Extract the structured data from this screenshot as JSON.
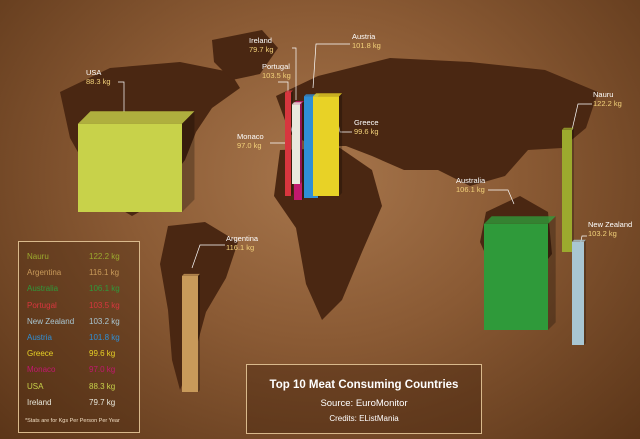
{
  "chart_data": {
    "type": "bar",
    "title": "Top 10 Meat Consuming Countries",
    "source": "Source: EuroMonitor",
    "credits": "Credits: EListMania",
    "note": "*Stats are for Kgs Per Person Per Year",
    "unit": "kg",
    "categories": [
      "Nauru",
      "Argentina",
      "Australia",
      "Portugal",
      "New Zealand",
      "Austria",
      "Greece",
      "Monaco",
      "USA",
      "Ireland"
    ],
    "values": [
      122.2,
      116.1,
      106.1,
      103.5,
      103.2,
      101.8,
      99.6,
      97.0,
      88.3,
      79.7
    ],
    "labels": [
      "122.2 kg",
      "116.1 kg",
      "106.1 kg",
      "103.5 kg",
      "103.2 kg",
      "101.8 kg",
      "99.6 kg",
      "97.0 kg",
      "88.3 kg",
      "79.7 kg"
    ],
    "colors": [
      "#9caa2e",
      "#c89a5a",
      "#2f9a3a",
      "#d8363e",
      "#a9c6d2",
      "#2f8fd6",
      "#e8d226",
      "#c2186e",
      "#c8d24a",
      "#e9e9dc"
    ]
  }
}
